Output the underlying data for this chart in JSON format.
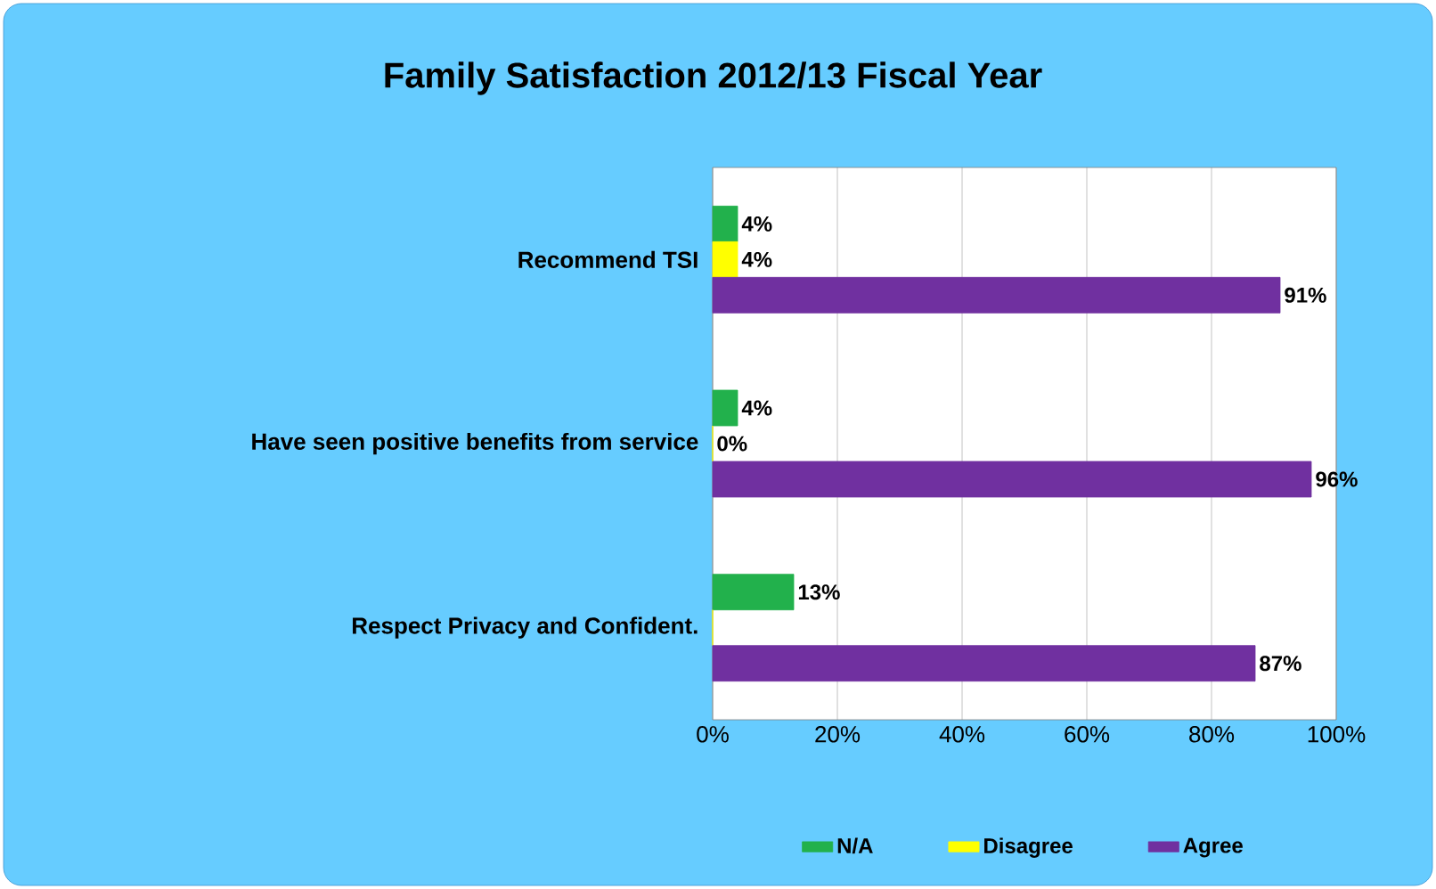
{
  "chart_data": {
    "type": "bar",
    "orientation": "horizontal",
    "title": "Family Satisfaction 2012/13 Fiscal Year",
    "categories": [
      "Recommend TSI",
      "Have seen positive benefits from service",
      "Respect Privacy and Confident."
    ],
    "series": [
      {
        "name": "N/A",
        "color": "#22b14c",
        "values": [
          4,
          4,
          13
        ],
        "value_labels": [
          "4%",
          "4%",
          "13%"
        ]
      },
      {
        "name": "Disagree",
        "color": "#ffff00",
        "values": [
          4,
          0,
          0
        ],
        "value_labels": [
          "4%",
          "0%",
          null
        ]
      },
      {
        "name": "Agree",
        "color": "#7030a0",
        "values": [
          91,
          96,
          87
        ],
        "value_labels": [
          "91%",
          "96%",
          "87%"
        ]
      }
    ],
    "xlim": [
      0,
      100
    ],
    "xticks": [
      {
        "value": 0,
        "label": "0%"
      },
      {
        "value": 20,
        "label": "20%"
      },
      {
        "value": 40,
        "label": "40%"
      },
      {
        "value": 60,
        "label": "60%"
      },
      {
        "value": 80,
        "label": "80%"
      },
      {
        "value": 100,
        "label": "100%"
      }
    ],
    "grid": "x",
    "legend": "bottom"
  }
}
